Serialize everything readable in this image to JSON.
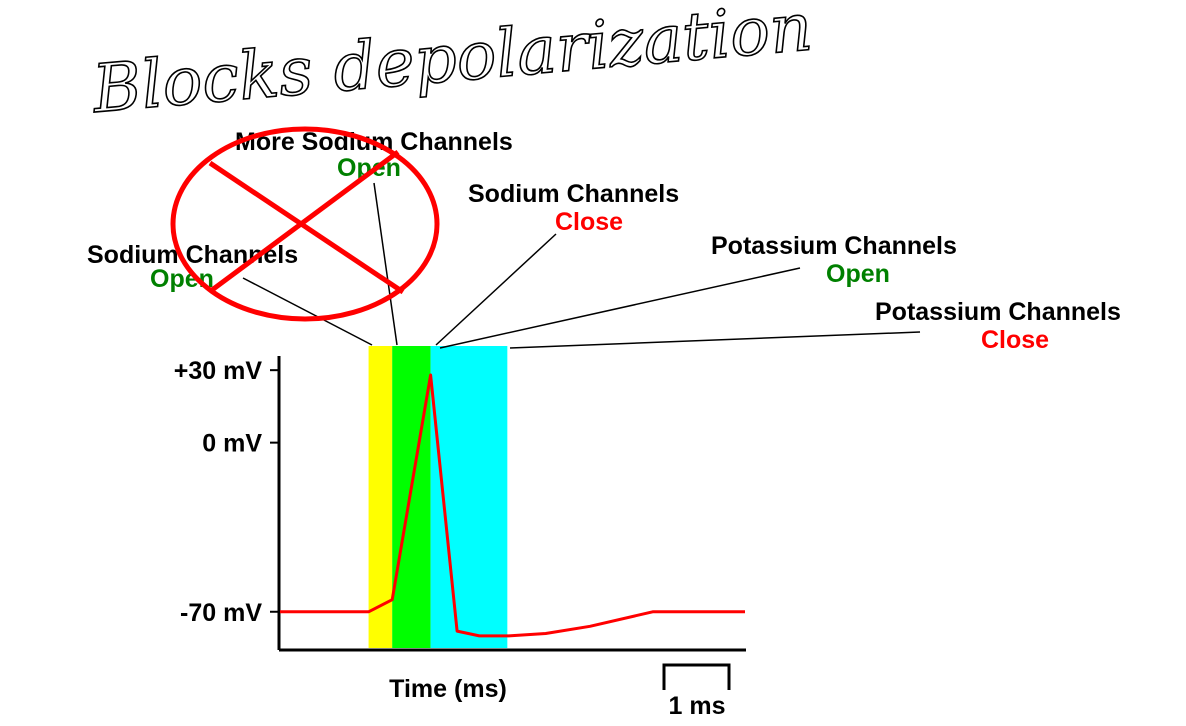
{
  "handwriting": "Blocks depolarization",
  "colors": {
    "open": "#008000",
    "close": "#ff0000",
    "trace": "#ff0000",
    "annotation": "#ff0000",
    "phase_yellow": "#ffff00",
    "phase_green": "#00ff00",
    "phase_cyan": "#00ffff",
    "ink": "#000000"
  },
  "labels": {
    "na_open": {
      "title": "Sodium Channels",
      "state": "Open"
    },
    "more_na_open": {
      "title": "More Sodium Channels",
      "state": "Open"
    },
    "na_close": {
      "title": "Sodium Channels",
      "state": "Close"
    },
    "k_open": {
      "title": "Potassium Channels",
      "state": "Open"
    },
    "k_close": {
      "title": "Potassium Channels",
      "state": "Close"
    }
  },
  "chart_data": {
    "type": "line",
    "xlabel": "Time (ms)",
    "ylabel": "",
    "y_ticks": [
      {
        "value": 30,
        "label": "+30 mV"
      },
      {
        "value": 0,
        "label": "0 mV"
      },
      {
        "value": -70,
        "label": "-70 mV"
      }
    ],
    "scale_bar": {
      "label": "1 ms",
      "value_ms": 1
    },
    "ylim": [
      -85,
      40
    ],
    "xlim": [
      0,
      6.3
    ],
    "phases": [
      {
        "name": "Sodium Channels Open",
        "x0": 1.2,
        "x1": 1.52,
        "color": "#ffff00"
      },
      {
        "name": "More Sodium Channels Open",
        "x0": 1.52,
        "x1": 2.04,
        "color": "#00ff00"
      },
      {
        "name": "Potassium Channels Open",
        "x0": 2.04,
        "x1": 3.08,
        "color": "#00ffff"
      }
    ],
    "series": [
      {
        "x": [
          0,
          1.2,
          1.52,
          2.04,
          2.4,
          2.7,
          3.1,
          3.6,
          4.2,
          5.05,
          6.3
        ],
        "y": [
          -70,
          -70,
          -65,
          28,
          -78,
          -80,
          -80,
          -79,
          -76,
          -70,
          -70
        ]
      }
    ]
  }
}
